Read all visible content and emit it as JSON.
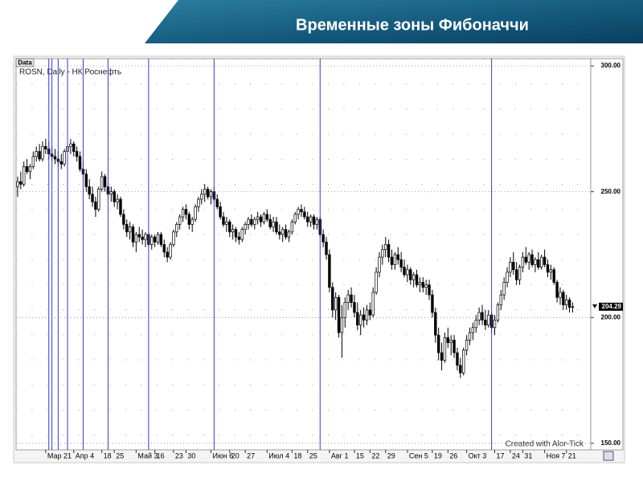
{
  "chart_data": {
    "type": "candlestick",
    "title": "Временные зоны Фибоначчи",
    "panel_label": "Data",
    "legend_text": "ROSN, Daily - НК Роснефть",
    "credit": "Created with Alor-Tick",
    "colors": {
      "up": "#ffffff",
      "down": "#000000",
      "outline": "#000000",
      "zones": "#3a3ac8"
    },
    "xlim": [
      -0.5,
      183.8
    ],
    "ylim": [
      147.4,
      302.9
    ],
    "yticks": [
      {
        "value": 150,
        "label": "150.00"
      },
      {
        "value": 200,
        "label": "200.00"
      },
      {
        "value": 250,
        "label": "250.00"
      },
      {
        "value": 300,
        "label": "300.00"
      }
    ],
    "xticks": [
      {
        "value": 9,
        "label": "Мар 21"
      },
      {
        "value": 18,
        "label": "Апр 4"
      },
      {
        "value": 27,
        "label": "18"
      },
      {
        "value": 31,
        "label": "25"
      },
      {
        "value": 38,
        "label": "Май 3"
      },
      {
        "value": 44,
        "label": "16"
      },
      {
        "value": 50,
        "label": "23"
      },
      {
        "value": 54,
        "label": "30"
      },
      {
        "value": 62,
        "label": "Июн 6"
      },
      {
        "value": 68,
        "label": "20"
      },
      {
        "value": 73,
        "label": "27"
      },
      {
        "value": 80,
        "label": "Июл 4"
      },
      {
        "value": 88,
        "label": "18"
      },
      {
        "value": 93,
        "label": "25"
      },
      {
        "value": 100,
        "label": "Авг 1"
      },
      {
        "value": 108,
        "label": "15"
      },
      {
        "value": 113,
        "label": "22"
      },
      {
        "value": 118,
        "label": "29"
      },
      {
        "value": 125,
        "label": "Сен 5"
      },
      {
        "value": 133,
        "label": "19"
      },
      {
        "value": 138,
        "label": "26"
      },
      {
        "value": 144,
        "label": "Окт 3"
      },
      {
        "value": 153,
        "label": "17"
      },
      {
        "value": 158,
        "label": "24"
      },
      {
        "value": 162,
        "label": "31"
      },
      {
        "value": 169,
        "label": "Ноя 7"
      },
      {
        "value": 176,
        "label": "21"
      }
    ],
    "fib_zones": [
      10,
      11,
      13,
      16,
      21,
      29,
      42,
      63,
      97,
      152
    ],
    "grid": true,
    "ohlc": [
      [
        252,
        256,
        248,
        254
      ],
      [
        254,
        258,
        251,
        253
      ],
      [
        253,
        262,
        252,
        260
      ],
      [
        260,
        263,
        257,
        258
      ],
      [
        258,
        261,
        255,
        260
      ],
      [
        260,
        266,
        259,
        264
      ],
      [
        264,
        268,
        262,
        266
      ],
      [
        266,
        269,
        262,
        263
      ],
      [
        263,
        270,
        262,
        268
      ],
      [
        268,
        271,
        265,
        267
      ],
      [
        267,
        270,
        263,
        265
      ],
      [
        265,
        268,
        262,
        264
      ],
      [
        264,
        267,
        261,
        263
      ],
      [
        263,
        266,
        260,
        262
      ],
      [
        262,
        265,
        259,
        261
      ],
      [
        261,
        267,
        260,
        266
      ],
      [
        266,
        270,
        264,
        268
      ],
      [
        268,
        271,
        265,
        269
      ],
      [
        269,
        270,
        264,
        266
      ],
      [
        266,
        268,
        262,
        264
      ],
      [
        264,
        266,
        258,
        259
      ],
      [
        259,
        262,
        255,
        257
      ],
      [
        257,
        259,
        250,
        252
      ],
      [
        252,
        255,
        247,
        249
      ],
      [
        249,
        252,
        244,
        246
      ],
      [
        246,
        248,
        240,
        243
      ],
      [
        243,
        252,
        242,
        251
      ],
      [
        251,
        258,
        250,
        256
      ],
      [
        256,
        257,
        250,
        252
      ],
      [
        252,
        254,
        247,
        249
      ],
      [
        249,
        252,
        246,
        250
      ],
      [
        250,
        251,
        244,
        246
      ],
      [
        246,
        249,
        243,
        247
      ],
      [
        247,
        248,
        240,
        241
      ],
      [
        241,
        243,
        235,
        237
      ],
      [
        237,
        239,
        232,
        234
      ],
      [
        234,
        238,
        231,
        236
      ],
      [
        236,
        237,
        228,
        230
      ],
      [
        230,
        234,
        226,
        233
      ],
      [
        233,
        236,
        230,
        232
      ],
      [
        232,
        235,
        229,
        231
      ],
      [
        231,
        234,
        228,
        233
      ],
      [
        233,
        234,
        228,
        229
      ],
      [
        229,
        233,
        227,
        232
      ],
      [
        232,
        233,
        228,
        230
      ],
      [
        230,
        234,
        229,
        233
      ],
      [
        233,
        234,
        228,
        229
      ],
      [
        229,
        231,
        224,
        226
      ],
      [
        226,
        228,
        222,
        224
      ],
      [
        224,
        230,
        223,
        229
      ],
      [
        229,
        235,
        228,
        234
      ],
      [
        234,
        238,
        232,
        237
      ],
      [
        237,
        241,
        235,
        240
      ],
      [
        240,
        244,
        238,
        243
      ],
      [
        243,
        245,
        239,
        241
      ],
      [
        241,
        242,
        235,
        237
      ],
      [
        237,
        240,
        234,
        239
      ],
      [
        239,
        245,
        238,
        244
      ],
      [
        244,
        248,
        242,
        247
      ],
      [
        247,
        251,
        245,
        249
      ],
      [
        249,
        253,
        246,
        251
      ],
      [
        251,
        252,
        247,
        248
      ],
      [
        248,
        251,
        245,
        250
      ],
      [
        250,
        252,
        246,
        247
      ],
      [
        247,
        249,
        243,
        244
      ],
      [
        244,
        246,
        239,
        240
      ],
      [
        240,
        242,
        236,
        237
      ],
      [
        237,
        240,
        234,
        238
      ],
      [
        238,
        239,
        232,
        234
      ],
      [
        234,
        237,
        231,
        235
      ],
      [
        235,
        236,
        230,
        232
      ],
      [
        232,
        234,
        229,
        231
      ],
      [
        231,
        236,
        230,
        235
      ],
      [
        235,
        238,
        233,
        237
      ],
      [
        237,
        240,
        235,
        239
      ],
      [
        239,
        241,
        236,
        237
      ],
      [
        237,
        240,
        235,
        239
      ],
      [
        239,
        242,
        237,
        240
      ],
      [
        240,
        241,
        236,
        238
      ],
      [
        238,
        242,
        237,
        241
      ],
      [
        241,
        243,
        238,
        239
      ],
      [
        239,
        241,
        235,
        236
      ],
      [
        236,
        240,
        234,
        238
      ],
      [
        238,
        240,
        233,
        234
      ],
      [
        234,
        237,
        231,
        233
      ],
      [
        233,
        236,
        230,
        235
      ],
      [
        235,
        237,
        231,
        232
      ],
      [
        232,
        235,
        230,
        234
      ],
      [
        234,
        239,
        233,
        238
      ],
      [
        238,
        242,
        237,
        241
      ],
      [
        241,
        244,
        239,
        243
      ],
      [
        243,
        245,
        240,
        242
      ],
      [
        242,
        244,
        239,
        240
      ],
      [
        240,
        242,
        236,
        238
      ],
      [
        238,
        241,
        236,
        240
      ],
      [
        240,
        241,
        235,
        237
      ],
      [
        237,
        240,
        235,
        239
      ],
      [
        239,
        240,
        232,
        233
      ],
      [
        233,
        235,
        228,
        230
      ],
      [
        230,
        232,
        223,
        225
      ],
      [
        225,
        227,
        210,
        212
      ],
      [
        212,
        214,
        200,
        203
      ],
      [
        203,
        210,
        199,
        208
      ],
      [
        208,
        209,
        192,
        194
      ],
      [
        194,
        205,
        184,
        200
      ],
      [
        200,
        208,
        196,
        206
      ],
      [
        206,
        211,
        203,
        209
      ],
      [
        209,
        212,
        204,
        206
      ],
      [
        206,
        209,
        200,
        202
      ],
      [
        202,
        206,
        195,
        197
      ],
      [
        197,
        203,
        193,
        201
      ],
      [
        201,
        204,
        196,
        199
      ],
      [
        199,
        205,
        197,
        203
      ],
      [
        203,
        206,
        199,
        201
      ],
      [
        201,
        212,
        200,
        210
      ],
      [
        210,
        220,
        209,
        218
      ],
      [
        218,
        226,
        216,
        224
      ],
      [
        224,
        229,
        221,
        227
      ],
      [
        227,
        232,
        224,
        229
      ],
      [
        229,
        231,
        222,
        224
      ],
      [
        224,
        227,
        219,
        221
      ],
      [
        221,
        226,
        219,
        225
      ],
      [
        225,
        228,
        221,
        223
      ],
      [
        223,
        226,
        218,
        220
      ],
      [
        220,
        223,
        216,
        217
      ],
      [
        217,
        221,
        214,
        219
      ],
      [
        219,
        220,
        213,
        215
      ],
      [
        215,
        218,
        212,
        217
      ],
      [
        217,
        219,
        212,
        213
      ],
      [
        213,
        216,
        210,
        214
      ],
      [
        214,
        216,
        210,
        212
      ],
      [
        212,
        215,
        209,
        213
      ],
      [
        213,
        215,
        207,
        209
      ],
      [
        209,
        211,
        200,
        202
      ],
      [
        202,
        204,
        190,
        193
      ],
      [
        193,
        196,
        183,
        186
      ],
      [
        186,
        190,
        179,
        183
      ],
      [
        183,
        194,
        182,
        192
      ],
      [
        192,
        196,
        188,
        190
      ],
      [
        190,
        193,
        185,
        191
      ],
      [
        191,
        193,
        184,
        186
      ],
      [
        186,
        188,
        179,
        181
      ],
      [
        181,
        184,
        176,
        178
      ],
      [
        178,
        188,
        177,
        187
      ],
      [
        187,
        193,
        185,
        191
      ],
      [
        191,
        196,
        189,
        194
      ],
      [
        194,
        198,
        191,
        196
      ],
      [
        196,
        201,
        194,
        199
      ],
      [
        199,
        204,
        197,
        202
      ],
      [
        202,
        205,
        197,
        199
      ],
      [
        199,
        203,
        195,
        197
      ],
      [
        197,
        203,
        196,
        201
      ],
      [
        201,
        202,
        194,
        196
      ],
      [
        196,
        201,
        193,
        199
      ],
      [
        199,
        206,
        198,
        205
      ],
      [
        205,
        211,
        203,
        209
      ],
      [
        209,
        216,
        207,
        214
      ],
      [
        214,
        220,
        212,
        218
      ],
      [
        218,
        224,
        216,
        222
      ],
      [
        222,
        226,
        217,
        219
      ],
      [
        219,
        222,
        213,
        215
      ],
      [
        215,
        221,
        213,
        220
      ],
      [
        220,
        226,
        218,
        224
      ],
      [
        224,
        228,
        221,
        222
      ],
      [
        222,
        226,
        219,
        225
      ],
      [
        225,
        227,
        220,
        221
      ],
      [
        221,
        224,
        218,
        223
      ],
      [
        223,
        226,
        219,
        220
      ],
      [
        220,
        225,
        219,
        224
      ],
      [
        224,
        227,
        220,
        221
      ],
      [
        221,
        223,
        216,
        218
      ],
      [
        218,
        221,
        215,
        219
      ],
      [
        219,
        220,
        213,
        214
      ],
      [
        214,
        215,
        206,
        208
      ],
      [
        208,
        212,
        205,
        210
      ],
      [
        210,
        211,
        203,
        205
      ],
      [
        205,
        209,
        203,
        207
      ],
      [
        207,
        208,
        202,
        204
      ],
      [
        204,
        206,
        202,
        204.29
      ]
    ]
  }
}
